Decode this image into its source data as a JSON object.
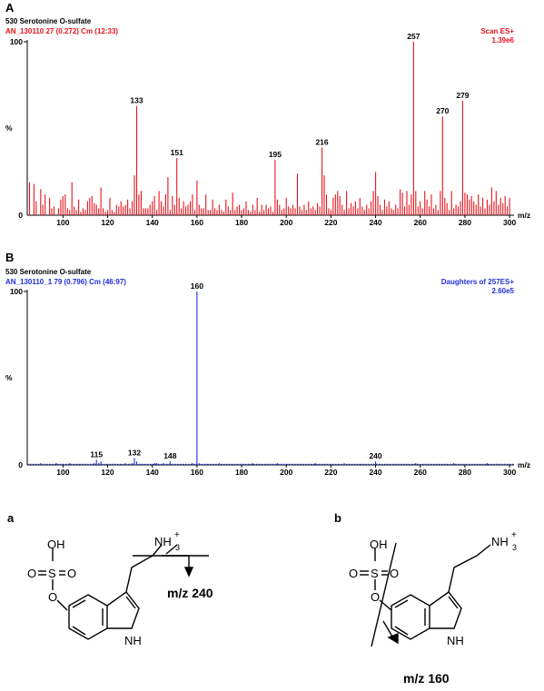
{
  "panels": {
    "A": {
      "letter": "A",
      "title": "530 Serotonine O-sulfate",
      "run": "AN_130110 27 (0.272) Cm (12:33)",
      "scan": "Scan ES+",
      "intensity": "1.39e6",
      "color": "#e8141c"
    },
    "B": {
      "letter": "B",
      "title": "530 Serotonine O-sulfate",
      "run": "AN_130110_1 79 (0.796) Cm (46:97)",
      "scan": "Daughters of 257ES+",
      "intensity": "2.60e5",
      "color": "#1f2fd9"
    }
  },
  "chart_data": [
    {
      "type": "bar",
      "panel": "A",
      "xlabel": "m/z",
      "ylabel": "%",
      "xlim": [
        84,
        302
      ],
      "ylim": [
        0,
        100
      ],
      "xticks": [
        100,
        120,
        140,
        160,
        180,
        200,
        220,
        240,
        260,
        280,
        300
      ],
      "yticks": [
        0,
        100
      ],
      "labeled_peaks": [
        {
          "mz": 133,
          "intensity": 63,
          "label": "133"
        },
        {
          "mz": 151,
          "intensity": 33,
          "label": "151"
        },
        {
          "mz": 195,
          "intensity": 32,
          "label": "195"
        },
        {
          "mz": 216,
          "intensity": 39,
          "label": "216"
        },
        {
          "mz": 257,
          "intensity": 100,
          "label": "257"
        },
        {
          "mz": 270,
          "intensity": 57,
          "label": "270"
        },
        {
          "mz": 279,
          "intensity": 66,
          "label": "279"
        }
      ],
      "peaks": [
        [
          85,
          19
        ],
        [
          87,
          18
        ],
        [
          88,
          8
        ],
        [
          90,
          15
        ],
        [
          91,
          6
        ],
        [
          92,
          12
        ],
        [
          94,
          10
        ],
        [
          95,
          4
        ],
        [
          96,
          5
        ],
        [
          98,
          4
        ],
        [
          99,
          9
        ],
        [
          100,
          11
        ],
        [
          101,
          12
        ],
        [
          102,
          4
        ],
        [
          103,
          3
        ],
        [
          104,
          19
        ],
        [
          105,
          5
        ],
        [
          106,
          3
        ],
        [
          107,
          9
        ],
        [
          108,
          2
        ],
        [
          109,
          4
        ],
        [
          110,
          3
        ],
        [
          111,
          8
        ],
        [
          112,
          10
        ],
        [
          113,
          11
        ],
        [
          114,
          7
        ],
        [
          115,
          6
        ],
        [
          116,
          4
        ],
        [
          117,
          16
        ],
        [
          118,
          4
        ],
        [
          119,
          2
        ],
        [
          120,
          3
        ],
        [
          121,
          10
        ],
        [
          122,
          3
        ],
        [
          123,
          2
        ],
        [
          124,
          6
        ],
        [
          125,
          5
        ],
        [
          126,
          8
        ],
        [
          127,
          5
        ],
        [
          128,
          6
        ],
        [
          129,
          9
        ],
        [
          130,
          4
        ],
        [
          131,
          8
        ],
        [
          132,
          23
        ],
        [
          133,
          63
        ],
        [
          134,
          12
        ],
        [
          135,
          14
        ],
        [
          136,
          4
        ],
        [
          137,
          4
        ],
        [
          138,
          4
        ],
        [
          139,
          6
        ],
        [
          140,
          8
        ],
        [
          141,
          11
        ],
        [
          142,
          3
        ],
        [
          143,
          14
        ],
        [
          144,
          8
        ],
        [
          145,
          5
        ],
        [
          146,
          12
        ],
        [
          147,
          22
        ],
        [
          148,
          3
        ],
        [
          149,
          11
        ],
        [
          150,
          6
        ],
        [
          151,
          33
        ],
        [
          152,
          10
        ],
        [
          153,
          4
        ],
        [
          154,
          8
        ],
        [
          155,
          5
        ],
        [
          156,
          6
        ],
        [
          157,
          8
        ],
        [
          158,
          12
        ],
        [
          159,
          3
        ],
        [
          160,
          20
        ],
        [
          161,
          6
        ],
        [
          162,
          4
        ],
        [
          163,
          4
        ],
        [
          164,
          12
        ],
        [
          165,
          3
        ],
        [
          166,
          3
        ],
        [
          167,
          9
        ],
        [
          168,
          4
        ],
        [
          169,
          3
        ],
        [
          170,
          6
        ],
        [
          171,
          3
        ],
        [
          172,
          2
        ],
        [
          173,
          9
        ],
        [
          174,
          5
        ],
        [
          175,
          3
        ],
        [
          176,
          13
        ],
        [
          177,
          3
        ],
        [
          178,
          5
        ],
        [
          179,
          6
        ],
        [
          180,
          3
        ],
        [
          181,
          4
        ],
        [
          182,
          8
        ],
        [
          183,
          3
        ],
        [
          184,
          2
        ],
        [
          185,
          6
        ],
        [
          186,
          3
        ],
        [
          187,
          10
        ],
        [
          188,
          2
        ],
        [
          189,
          6
        ],
        [
          190,
          3
        ],
        [
          191,
          6
        ],
        [
          192,
          4
        ],
        [
          193,
          5
        ],
        [
          194,
          2
        ],
        [
          195,
          32
        ],
        [
          196,
          9
        ],
        [
          197,
          6
        ],
        [
          198,
          3
        ],
        [
          199,
          4
        ],
        [
          200,
          10
        ],
        [
          201,
          5
        ],
        [
          202,
          4
        ],
        [
          203,
          6
        ],
        [
          204,
          4
        ],
        [
          205,
          24
        ],
        [
          206,
          5
        ],
        [
          207,
          3
        ],
        [
          208,
          6
        ],
        [
          209,
          3
        ],
        [
          210,
          8
        ],
        [
          211,
          4
        ],
        [
          212,
          5
        ],
        [
          213,
          3
        ],
        [
          214,
          7
        ],
        [
          215,
          5
        ],
        [
          216,
          39
        ],
        [
          217,
          23
        ],
        [
          218,
          12
        ],
        [
          219,
          4
        ],
        [
          220,
          3
        ],
        [
          221,
          10
        ],
        [
          222,
          12
        ],
        [
          223,
          14
        ],
        [
          224,
          11
        ],
        [
          225,
          6
        ],
        [
          226,
          3
        ],
        [
          227,
          14
        ],
        [
          228,
          4
        ],
        [
          229,
          7
        ],
        [
          230,
          5
        ],
        [
          231,
          8
        ],
        [
          232,
          4
        ],
        [
          233,
          10
        ],
        [
          234,
          5
        ],
        [
          235,
          3
        ],
        [
          236,
          6
        ],
        [
          237,
          4
        ],
        [
          238,
          8
        ],
        [
          239,
          14
        ],
        [
          240,
          25
        ],
        [
          241,
          11
        ],
        [
          242,
          6
        ],
        [
          243,
          3
        ],
        [
          244,
          9
        ],
        [
          245,
          5
        ],
        [
          246,
          8
        ],
        [
          247,
          4
        ],
        [
          248,
          3
        ],
        [
          249,
          6
        ],
        [
          250,
          4
        ],
        [
          251,
          15
        ],
        [
          252,
          13
        ],
        [
          253,
          5
        ],
        [
          254,
          14
        ],
        [
          255,
          6
        ],
        [
          256,
          12
        ],
        [
          257,
          100
        ],
        [
          258,
          14
        ],
        [
          259,
          5
        ],
        [
          260,
          8
        ],
        [
          261,
          4
        ],
        [
          262,
          14
        ],
        [
          263,
          9
        ],
        [
          264,
          5
        ],
        [
          265,
          12
        ],
        [
          266,
          4
        ],
        [
          267,
          6
        ],
        [
          268,
          3
        ],
        [
          269,
          14
        ],
        [
          270,
          57
        ],
        [
          271,
          10
        ],
        [
          272,
          7
        ],
        [
          273,
          3
        ],
        [
          274,
          14
        ],
        [
          275,
          4
        ],
        [
          276,
          6
        ],
        [
          277,
          5
        ],
        [
          278,
          8
        ],
        [
          279,
          66
        ],
        [
          280,
          13
        ],
        [
          281,
          12
        ],
        [
          282,
          9
        ],
        [
          283,
          11
        ],
        [
          284,
          8
        ],
        [
          285,
          6
        ],
        [
          286,
          12
        ],
        [
          287,
          5
        ],
        [
          288,
          10
        ],
        [
          289,
          4
        ],
        [
          290,
          9
        ],
        [
          291,
          6
        ],
        [
          292,
          16
        ],
        [
          293,
          8
        ],
        [
          294,
          14
        ],
        [
          295,
          6
        ],
        [
          296,
          10
        ],
        [
          297,
          7
        ],
        [
          298,
          11
        ],
        [
          299,
          5
        ],
        [
          300,
          10
        ]
      ]
    },
    {
      "type": "bar",
      "panel": "B",
      "xlabel": "m/z",
      "ylabel": "%",
      "xlim": [
        84,
        302
      ],
      "ylim": [
        0,
        100
      ],
      "xticks": [
        100,
        120,
        140,
        160,
        180,
        200,
        220,
        240,
        260,
        280,
        300
      ],
      "yticks": [
        0,
        100
      ],
      "labeled_peaks": [
        {
          "mz": 115,
          "intensity": 3,
          "label": "115"
        },
        {
          "mz": 132,
          "intensity": 4,
          "label": "132"
        },
        {
          "mz": 148,
          "intensity": 2,
          "label": "148"
        },
        {
          "mz": 160,
          "intensity": 100,
          "label": "160"
        },
        {
          "mz": 240,
          "intensity": 2,
          "label": "240"
        }
      ],
      "peaks": [
        [
          90,
          1
        ],
        [
          97,
          1
        ],
        [
          103,
          1
        ],
        [
          114,
          1
        ],
        [
          115,
          3
        ],
        [
          116,
          1
        ],
        [
          117,
          2
        ],
        [
          128,
          1
        ],
        [
          131,
          1
        ],
        [
          132,
          4
        ],
        [
          133,
          2
        ],
        [
          141,
          1
        ],
        [
          142,
          1
        ],
        [
          145,
          1
        ],
        [
          148,
          2
        ],
        [
          158,
          1
        ],
        [
          160,
          100
        ],
        [
          161,
          1
        ],
        [
          170,
          1
        ],
        [
          185,
          1
        ],
        [
          196,
          1
        ],
        [
          213,
          1
        ],
        [
          226,
          1
        ],
        [
          240,
          2
        ],
        [
          258,
          1
        ],
        [
          275,
          1
        ],
        [
          290,
          1
        ]
      ]
    }
  ],
  "structures": {
    "a": {
      "letter": "a",
      "oh": "OH",
      "o": "O",
      "s": "S",
      "nh3": "NH",
      "nh3_sub": "3",
      "charge": "+",
      "nh": "NH",
      "fragment": "m/z 240"
    },
    "b": {
      "letter": "b",
      "oh": "OH",
      "o": "O",
      "s": "S",
      "nh3": "NH",
      "nh3_sub": "3",
      "charge": "+",
      "nh": "NH",
      "fragment": "m/z 160"
    }
  }
}
